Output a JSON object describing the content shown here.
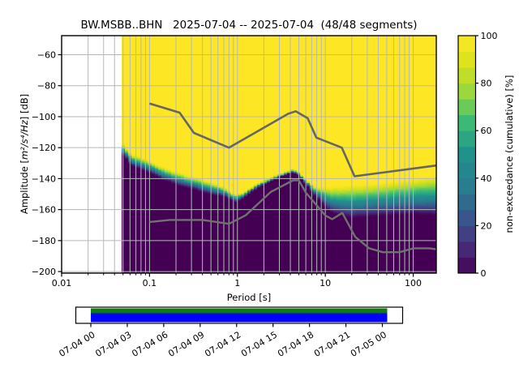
{
  "labels": {
    "title": "BW.MSBB..BHN   2025-07-04 -- 2025-07-04  (48/48 segments)",
    "xlabel": "Period [s]",
    "ylabel_prefix": "Amplitude [",
    "ylabel_math": "m²/s⁴/Hz",
    "ylabel_suffix": "] [dB]",
    "colorbar_label": "non-exceedance (cumulative) [%]"
  },
  "chart_data": {
    "type": "heatmap",
    "title": "BW.MSBB..BHN   2025-07-04 -- 2025-07-04  (48/48 segments)",
    "station_id": "BW.MSBB..BHN",
    "date_range": "2025-07-04 -- 2025-07-04",
    "segments": "48/48",
    "x_axis": {
      "label": "Period [s]",
      "scale": "log",
      "min": 0.01,
      "max": 183,
      "major_ticks": [
        0.01,
        0.1,
        1,
        10,
        100
      ],
      "major_tick_labels": [
        "0.01",
        "0.1",
        "1",
        "10",
        "100"
      ]
    },
    "y_axis": {
      "label": "Amplitude [m²/s⁴/Hz] [dB]",
      "min": -201,
      "max": -47.7,
      "major_ticks": [
        -60,
        -80,
        -100,
        -120,
        -140,
        -160,
        -180,
        -200
      ],
      "major_tick_labels": [
        "−60",
        "−80",
        "−100",
        "−120",
        "−140",
        "−160",
        "−180",
        "−200"
      ]
    },
    "colorbar": {
      "label": "non-exceedance (cumulative) [%]",
      "min": 0,
      "max": 100,
      "ticks": [
        0,
        20,
        40,
        60,
        80,
        100
      ],
      "tick_labels": [
        "0",
        "20",
        "40",
        "60",
        "80",
        "100"
      ],
      "blocks": 15
    },
    "period_min": 0.048,
    "period_step_octaves": 0.125,
    "psd_envelope_comment": "[period_s, dB_where_100pct_begins, dB_where_0pct_begins]",
    "psd_envelope": [
      [
        0.048,
        -117.5,
        -124.5
      ],
      [
        0.053,
        -118.5,
        -125.5
      ],
      [
        0.056,
        -122,
        -129
      ],
      [
        0.062,
        -124,
        -131.5
      ],
      [
        0.075,
        -125.5,
        -133.5
      ],
      [
        0.1,
        -129,
        -136
      ],
      [
        0.14,
        -132.5,
        -140.5
      ],
      [
        0.21,
        -136,
        -144
      ],
      [
        0.3,
        -138.5,
        -146.5
      ],
      [
        0.45,
        -141.5,
        -149.5
      ],
      [
        0.7,
        -145.5,
        -151.5
      ],
      [
        0.95,
        -150.5,
        -155
      ],
      [
        1.2,
        -148.5,
        -152
      ],
      [
        1.45,
        -145.5,
        -148.5
      ],
      [
        1.8,
        -142.5,
        -145.2
      ],
      [
        2.2,
        -140.5,
        -142.8
      ],
      [
        2.75,
        -138,
        -140
      ],
      [
        3.3,
        -136.3,
        -138
      ],
      [
        4.2,
        -134.2,
        -136
      ],
      [
        4.9,
        -135.2,
        -137.3
      ],
      [
        5.6,
        -138.5,
        -141.5
      ],
      [
        6.6,
        -142.5,
        -146
      ],
      [
        7.8,
        -145.3,
        -151.5
      ],
      [
        9.5,
        -145.8,
        -157.5
      ],
      [
        12,
        -145.3,
        -162
      ],
      [
        15,
        -144.8,
        -164
      ],
      [
        19,
        -144.3,
        -165.3
      ],
      [
        25,
        -143.8,
        -165
      ],
      [
        35,
        -143.2,
        -164.3
      ],
      [
        50,
        -142.3,
        -163.8
      ],
      [
        75,
        -141.3,
        -163.3
      ],
      [
        110,
        -139.8,
        -163
      ],
      [
        150,
        -138.8,
        -163.3
      ],
      [
        183,
        -138,
        -163.8
      ]
    ],
    "noise_models": {
      "high": [
        [
          0.1,
          -91.5
        ],
        [
          0.22,
          -97.4
        ],
        [
          0.32,
          -110.5
        ],
        [
          0.8,
          -120.0
        ],
        [
          3.8,
          -98.1
        ],
        [
          4.6,
          -96.5
        ],
        [
          6.3,
          -101.0
        ],
        [
          7.9,
          -113.5
        ],
        [
          15.4,
          -120.0
        ],
        [
          21.5,
          -138.5
        ],
        [
          183,
          -131.5
        ]
      ],
      "low": [
        [
          0.1,
          -168.0
        ],
        [
          0.17,
          -166.7
        ],
        [
          0.4,
          -166.7
        ],
        [
          0.8,
          -169.2
        ],
        [
          1.24,
          -163.7
        ],
        [
          2.4,
          -148.6
        ],
        [
          4.3,
          -141.1
        ],
        [
          5.0,
          -141.1
        ],
        [
          6.0,
          -149.0
        ],
        [
          10.0,
          -163.8
        ],
        [
          12.0,
          -166.2
        ],
        [
          15.6,
          -162.1
        ],
        [
          21.9,
          -177.6
        ],
        [
          31.6,
          -185.0
        ],
        [
          45.0,
          -187.5
        ],
        [
          70.0,
          -187.5
        ],
        [
          101,
          -185.0
        ],
        [
          154,
          -185.0
        ],
        [
          183,
          -185.6
        ]
      ]
    }
  },
  "timeline": {
    "tick_labels": [
      "07-04 00",
      "07-04 03",
      "07-04 06",
      "07-04 09",
      "07-04 12",
      "07-04 15",
      "07-04 18",
      "07-04 21",
      "07-05 00"
    ]
  },
  "colors": {
    "background": "#ffffff",
    "grid": "#b6b6be",
    "spine": "#000000",
    "nhnm_line": "#666666",
    "nlnm_line": "#717171",
    "timeline_green": "#0b7d0b",
    "timeline_blue": "#0000ff",
    "viridis": [
      "#440154",
      "#46327e",
      "#365c8d",
      "#277f8e",
      "#21918c",
      "#35b779",
      "#90d743",
      "#d8e219",
      "#fde725"
    ]
  }
}
